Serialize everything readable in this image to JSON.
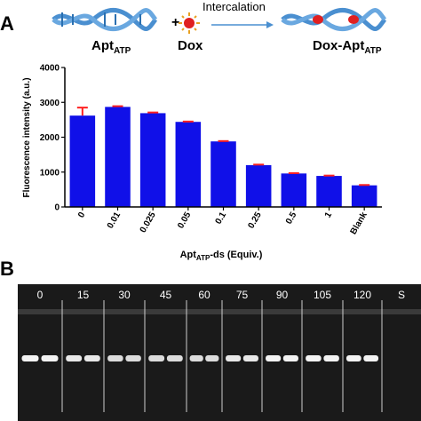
{
  "panel_a_label": "A",
  "panel_b_label": "B",
  "scheme": {
    "arrow_label": "Intercalation",
    "plus": "+",
    "left_label_main": "Apt",
    "left_label_sub": "ATP",
    "middle_label": "Dox",
    "right_label_main": "Dox-Apt",
    "right_label_sub": "ATP",
    "colors": {
      "helix": "#4a8fd0",
      "dox": "#e02020"
    }
  },
  "chart_data": {
    "type": "bar",
    "categories": [
      "0",
      "0.01",
      "0.025",
      "0.05",
      "0.1",
      "0.25",
      "0.5",
      "1",
      "Blank"
    ],
    "values": [
      2620,
      2870,
      2690,
      2440,
      1880,
      1200,
      960,
      890,
      620
    ],
    "errors": [
      230,
      20,
      20,
      10,
      10,
      15,
      10,
      10,
      10
    ],
    "ylim": [
      0,
      4000
    ],
    "yticks": [
      0,
      1000,
      2000,
      3000,
      4000
    ],
    "ylabel": "Fluorescence intensity (a.u.)",
    "xlabel_main": "Apt",
    "xlabel_sub": "ATP",
    "xlabel_tail": "-ds (Equiv.)",
    "bar_color": "#1010e8",
    "error_color": "#ff2020"
  },
  "gel": {
    "lane_labels": [
      "0",
      "15",
      "30",
      "45",
      "60",
      "75",
      "90",
      "105",
      "120",
      "S"
    ],
    "band_intensity": [
      0.95,
      0.9,
      0.85,
      0.85,
      0.85,
      0.9,
      0.95,
      0.95,
      0.95,
      0.0
    ]
  }
}
